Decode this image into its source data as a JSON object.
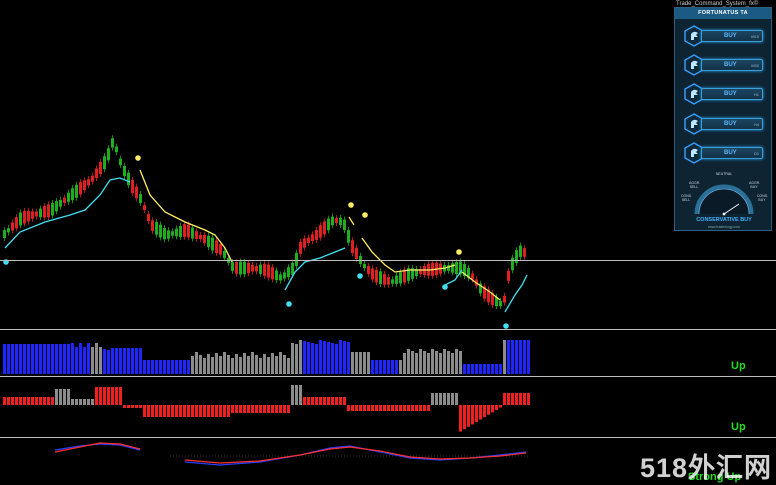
{
  "window": {
    "title": "Trade_Command_System_fx©"
  },
  "panel": {
    "title": "FORTUNATUS TA",
    "signals": [
      {
        "label": "BUY",
        "timeframe": "M15"
      },
      {
        "label": "BUY",
        "timeframe": "M30"
      },
      {
        "label": "BUY",
        "timeframe": "H1"
      },
      {
        "label": "BUY",
        "timeframe": "H4"
      },
      {
        "label": "BUY",
        "timeframe": "D1"
      }
    ],
    "gauge": {
      "neutral": "NEUTRAL",
      "agg_sell": "AGGR. SELL",
      "agg_buy": "AGGR. BUY",
      "cons_sell": "CONS. SELL",
      "cons_buy": "CONS. BUY",
      "signal": "CONSERVATIVE BUY",
      "site": "www.tradeology.com"
    },
    "colors": {
      "accent": "#3aa0ff",
      "panel_bg": "#0e2433"
    }
  },
  "subwindows": {
    "histogram_status": "Up",
    "oscillator_status": "Up",
    "trend_status": "Strong Up"
  },
  "watermark": "518外汇网",
  "colors": {
    "bull": "#1fae1f",
    "bear": "#e02020",
    "trend_line": "#ffee66",
    "support_line": "#40e0f0",
    "hist_up": "#1f25ff",
    "hist_neutral": "#8c8c8c",
    "osc_pos": "#ee2020",
    "status": "#22dd22"
  }
}
